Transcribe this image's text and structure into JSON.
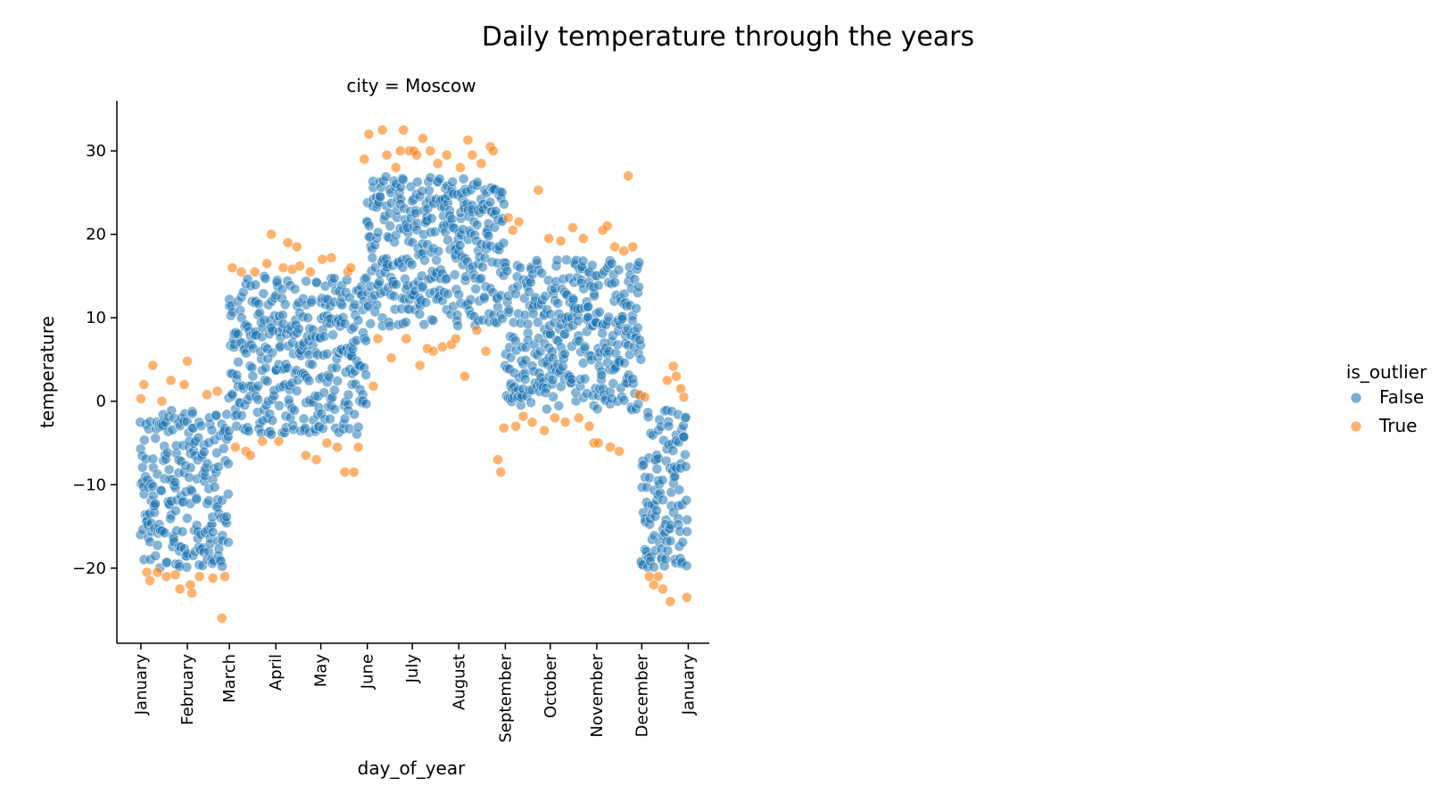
{
  "chart_data": {
    "type": "scatter",
    "title": "Daily temperature through the years",
    "subtitle": "city = Moscow",
    "xlabel": "day_of_year",
    "ylabel": "temperature",
    "xlim": [
      -15,
      380
    ],
    "ylim": [
      -29,
      36
    ],
    "yticks": [
      {
        "value": 30,
        "label": "30"
      },
      {
        "value": 20,
        "label": "20"
      },
      {
        "value": 10,
        "label": "10"
      },
      {
        "value": 0,
        "label": "0"
      },
      {
        "value": -10,
        "label": "−10"
      },
      {
        "value": -20,
        "label": "−20"
      }
    ],
    "xticks": [
      {
        "value": 1,
        "label": "January"
      },
      {
        "value": 32,
        "label": "February"
      },
      {
        "value": 60,
        "label": "March"
      },
      {
        "value": 91,
        "label": "April"
      },
      {
        "value": 121,
        "label": "May"
      },
      {
        "value": 152,
        "label": "June"
      },
      {
        "value": 182,
        "label": "July"
      },
      {
        "value": 213,
        "label": "August"
      },
      {
        "value": 244,
        "label": "September"
      },
      {
        "value": 274,
        "label": "October"
      },
      {
        "value": 305,
        "label": "November"
      },
      {
        "value": 335,
        "label": "December"
      },
      {
        "value": 366,
        "label": "January"
      }
    ],
    "legend": {
      "title": "is_outlier",
      "placement": "right",
      "entries": [
        {
          "label": "False",
          "color": "#1f77b4"
        },
        {
          "label": "True",
          "color": "#ff7f0e"
        }
      ]
    },
    "grid": false,
    "series": [
      {
        "name": "False",
        "color": "#1f77b4",
        "bands": [
          {
            "x": [
              1,
              31
            ],
            "y": [
              -20,
              -1
            ]
          },
          {
            "x": [
              32,
              59
            ],
            "y": [
              -20,
              -1
            ]
          },
          {
            "x": [
              60,
              90
            ],
            "y": [
              -4,
              15
            ]
          },
          {
            "x": [
              91,
              120
            ],
            "y": [
              -4,
              15
            ]
          },
          {
            "x": [
              121,
              151
            ],
            "y": [
              -4,
              15
            ]
          },
          {
            "x": [
              152,
              181
            ],
            "y": [
              9,
              27
            ]
          },
          {
            "x": [
              182,
              212
            ],
            "y": [
              9,
              27
            ]
          },
          {
            "x": [
              213,
              243
            ],
            "y": [
              9,
              27
            ]
          },
          {
            "x": [
              244,
              273
            ],
            "y": [
              -1,
              17
            ]
          },
          {
            "x": [
              274,
              304
            ],
            "y": [
              -1,
              17
            ]
          },
          {
            "x": [
              305,
              334
            ],
            "y": [
              -1,
              17
            ]
          },
          {
            "x": [
              335,
              365
            ],
            "y": [
              -20,
              -1
            ]
          }
        ],
        "points_per_day": 4
      },
      {
        "name": "True",
        "color": "#ff7f0e",
        "points": [
          [
            1,
            0.3
          ],
          [
            3,
            2
          ],
          [
            5,
            -20.5
          ],
          [
            7,
            -21.5
          ],
          [
            9,
            4.3
          ],
          [
            12,
            -20.5
          ],
          [
            15,
            0
          ],
          [
            18,
            -21
          ],
          [
            21,
            2.5
          ],
          [
            24,
            -20.8
          ],
          [
            27,
            -22.5
          ],
          [
            30,
            2
          ],
          [
            32,
            4.8
          ],
          [
            34,
            -22
          ],
          [
            35,
            -23
          ],
          [
            40,
            -21
          ],
          [
            45,
            0.8
          ],
          [
            49,
            -21.2
          ],
          [
            52,
            1.2
          ],
          [
            55,
            -26
          ],
          [
            57,
            -21
          ],
          [
            62,
            16
          ],
          [
            64,
            -5.5
          ],
          [
            68,
            15.5
          ],
          [
            71,
            -6
          ],
          [
            74,
            -6.5
          ],
          [
            77,
            15.5
          ],
          [
            82,
            -4.8
          ],
          [
            85,
            16.5
          ],
          [
            88,
            20
          ],
          [
            93,
            -4.8
          ],
          [
            96,
            16
          ],
          [
            99,
            19
          ],
          [
            102,
            15.8
          ],
          [
            105,
            18.5
          ],
          [
            107,
            16.2
          ],
          [
            111,
            -6.5
          ],
          [
            114,
            15.5
          ],
          [
            118,
            -7
          ],
          [
            122,
            17
          ],
          [
            125,
            -5
          ],
          [
            128,
            17.2
          ],
          [
            132,
            -5.5
          ],
          [
            137,
            -8.5
          ],
          [
            139,
            15.5
          ],
          [
            141,
            16
          ],
          [
            143,
            -8.5
          ],
          [
            146,
            -5.5
          ],
          [
            150,
            29
          ],
          [
            153,
            32
          ],
          [
            156,
            1.8
          ],
          [
            159,
            7.5
          ],
          [
            162,
            32.5
          ],
          [
            165,
            29.5
          ],
          [
            168,
            5.2
          ],
          [
            171,
            28
          ],
          [
            174,
            30
          ],
          [
            176,
            32.5
          ],
          [
            178,
            7.5
          ],
          [
            180,
            30
          ],
          [
            183,
            30
          ],
          [
            185,
            29.5
          ],
          [
            187,
            4.3
          ],
          [
            189,
            31.5
          ],
          [
            192,
            6.3
          ],
          [
            194,
            30
          ],
          [
            196,
            6
          ],
          [
            199,
            28.5
          ],
          [
            202,
            6.5
          ],
          [
            205,
            29.5
          ],
          [
            208,
            6.8
          ],
          [
            211,
            7.5
          ],
          [
            214,
            28
          ],
          [
            217,
            3
          ],
          [
            219,
            31.3
          ],
          [
            222,
            29.5
          ],
          [
            225,
            8.5
          ],
          [
            228,
            28.5
          ],
          [
            231,
            6
          ],
          [
            234,
            30.5
          ],
          [
            236,
            30
          ],
          [
            239,
            -7
          ],
          [
            241,
            -8.5
          ],
          [
            243,
            -3.2
          ],
          [
            246,
            22
          ],
          [
            249,
            20.5
          ],
          [
            251,
            -3
          ],
          [
            253,
            21.5
          ],
          [
            256,
            -1.8
          ],
          [
            262,
            -2.5
          ],
          [
            266,
            25.3
          ],
          [
            270,
            -3.5
          ],
          [
            273,
            19.5
          ],
          [
            277,
            -2
          ],
          [
            281,
            19.2
          ],
          [
            284,
            -2.5
          ],
          [
            289,
            20.8
          ],
          [
            293,
            -2
          ],
          [
            296,
            19.5
          ],
          [
            300,
            -3
          ],
          [
            303,
            -5
          ],
          [
            306,
            -5
          ],
          [
            309,
            20.5
          ],
          [
            312,
            21
          ],
          [
            314,
            -5.5
          ],
          [
            317,
            18.5
          ],
          [
            320,
            -6
          ],
          [
            323,
            18
          ],
          [
            326,
            27
          ],
          [
            329,
            18.5
          ],
          [
            333,
            0.8
          ],
          [
            337,
            0.5
          ],
          [
            340,
            -21
          ],
          [
            343,
            -22
          ],
          [
            346,
            -21
          ],
          [
            349,
            -22.5
          ],
          [
            352,
            2.5
          ],
          [
            354,
            -24
          ],
          [
            356,
            4.2
          ],
          [
            358,
            3
          ],
          [
            361,
            1.5
          ],
          [
            363,
            0.5
          ],
          [
            365,
            -23.5
          ]
        ]
      }
    ]
  }
}
